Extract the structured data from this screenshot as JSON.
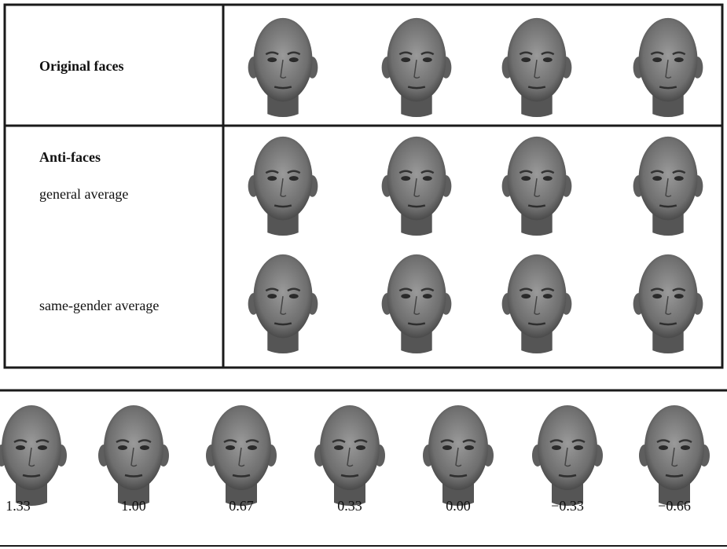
{
  "table": {
    "rows": [
      {
        "label": "Original faces"
      },
      {
        "label": "Anti-faces",
        "sublabels": [
          "general average",
          "same-gender average"
        ]
      }
    ]
  },
  "scale": {
    "labels": [
      "1.33",
      "1.00",
      "0.67",
      "0.33",
      "0.00",
      "−0.33",
      "−0.66"
    ]
  }
}
